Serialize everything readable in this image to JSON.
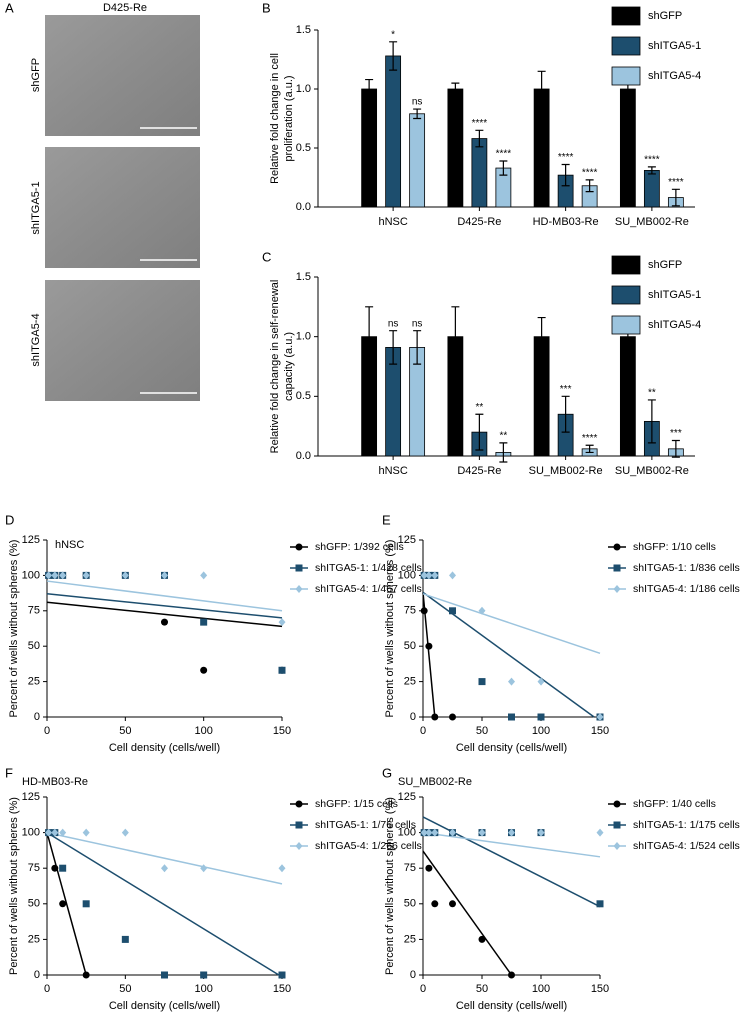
{
  "panel_a": {
    "letter": "A",
    "title": "D425-Re",
    "rows": [
      "shGFP",
      "shITGA5-1",
      "shITGA5-4"
    ]
  },
  "chart_data": [
    {
      "type": "bar",
      "letter": "B",
      "ylabel": [
        "Relative fold change in cell",
        "proliferation (a.u.)"
      ],
      "categories": [
        "hNSC",
        "D425-Re",
        "HD-MB03-Re",
        "SU_MB002-Re"
      ],
      "ylim": [
        0,
        1.5
      ],
      "yticks": [
        {
          "value": 0,
          "label": "0.0"
        },
        {
          "value": 0.5,
          "label": "0.5"
        },
        {
          "value": 1,
          "label": "1.0"
        },
        {
          "value": 1.5,
          "label": "1.5"
        }
      ],
      "series": [
        {
          "name": "shGFP",
          "color": "#000000",
          "values": [
            1.0,
            1.0,
            1.0,
            1.0
          ],
          "errors": [
            0.08,
            0.05,
            0.15,
            0.1
          ]
        },
        {
          "name": "shITGA5-1",
          "color": "#1d4e6e",
          "values": [
            1.28,
            0.58,
            0.27,
            0.31
          ],
          "errors": [
            0.12,
            0.07,
            0.09,
            0.03
          ],
          "annotations": [
            "*",
            "****",
            "****",
            "****"
          ]
        },
        {
          "name": "shITGA5-4",
          "color": "#9cc4de",
          "values": [
            0.79,
            0.33,
            0.18,
            0.08
          ],
          "errors": [
            0.04,
            0.06,
            0.05,
            0.07
          ],
          "annotations": [
            "ns",
            "****",
            "****",
            "****"
          ]
        }
      ]
    },
    {
      "type": "bar",
      "letter": "C",
      "ylabel": [
        "Relative fold change in self-renewal",
        "capacity (a.u.)"
      ],
      "categories": [
        "hNSC",
        "D425-Re",
        "SU_MB002-Re",
        "SU_MB002-Re"
      ],
      "ylim": [
        0,
        1.5
      ],
      "yticks": [
        {
          "value": 0,
          "label": "0.0"
        },
        {
          "value": 0.5,
          "label": "0.5"
        },
        {
          "value": 1,
          "label": "1.0"
        },
        {
          "value": 1.5,
          "label": "1.5"
        }
      ],
      "series": [
        {
          "name": "shGFP",
          "color": "#000000",
          "values": [
            1.0,
            1.0,
            1.0,
            1.0
          ],
          "errors": [
            0.25,
            0.25,
            0.16,
            0.11
          ]
        },
        {
          "name": "shITGA5-1",
          "color": "#1d4e6e",
          "values": [
            0.91,
            0.2,
            0.35,
            0.29
          ],
          "errors": [
            0.14,
            0.15,
            0.15,
            0.18
          ],
          "annotations": [
            "ns",
            "**",
            "***",
            "**"
          ]
        },
        {
          "name": "shITGA5-4",
          "color": "#9cc4de",
          "values": [
            0.91,
            0.03,
            0.06,
            0.06
          ],
          "errors": [
            0.14,
            0.08,
            0.03,
            0.07
          ],
          "annotations": [
            "ns",
            "**",
            "****",
            "***"
          ]
        }
      ]
    },
    {
      "type": "scatter",
      "letter": "D",
      "title": "hNSC",
      "xlabel": "Cell density (cells/well)",
      "ylabel": "Percent of wells without spheres (%)",
      "xlim": [
        0,
        150
      ],
      "xticks": [
        0,
        50,
        100,
        150
      ],
      "ylim": [
        0,
        125
      ],
      "yticks": [
        0,
        25,
        50,
        75,
        100,
        125
      ],
      "series": [
        {
          "name": "shGFP: 1/392 cells",
          "color": "#000000",
          "marker": "circle",
          "x": [
            1,
            5,
            10,
            25,
            50,
            75,
            100,
            150
          ],
          "y": [
            100,
            100,
            100,
            100,
            100,
            67,
            33,
            33
          ],
          "fit_x": [
            0,
            150
          ],
          "fit_y": [
            81,
            64
          ]
        },
        {
          "name": "shITGA5-1: 1/428 cells",
          "color": "#1d4e6e",
          "marker": "square",
          "x": [
            1,
            5,
            10,
            25,
            50,
            75,
            100,
            150
          ],
          "y": [
            100,
            100,
            100,
            100,
            100,
            100,
            67,
            33
          ],
          "fit_x": [
            0,
            150
          ],
          "fit_y": [
            87,
            70
          ]
        },
        {
          "name": "shITGA5-4: 1/467 cells",
          "color": "#9cc4de",
          "marker": "diamond",
          "x": [
            1,
            5,
            10,
            25,
            50,
            75,
            100,
            150
          ],
          "y": [
            100,
            100,
            100,
            100,
            100,
            100,
            100,
            67
          ],
          "fit_x": [
            0,
            150
          ],
          "fit_y": [
            96,
            75
          ]
        }
      ]
    },
    {
      "type": "scatter",
      "letter": "E",
      "xlabel": "Cell density (cells/well)",
      "ylabel": "Percent of wells without spheres (%)",
      "xlim": [
        0,
        150
      ],
      "xticks": [
        0,
        50,
        100,
        150
      ],
      "ylim": [
        0,
        125
      ],
      "yticks": [
        0,
        25,
        50,
        75,
        100,
        125
      ],
      "series": [
        {
          "name": "shGFP: 1/10 cells",
          "color": "#000000",
          "marker": "circle",
          "x": [
            1,
            5,
            10,
            25
          ],
          "y": [
            75,
            50,
            0,
            0
          ],
          "fit_x": [
            0,
            10
          ],
          "fit_y": [
            88,
            0
          ]
        },
        {
          "name": "shITGA5-1: 1/836 cells",
          "color": "#1d4e6e",
          "marker": "square",
          "x": [
            1,
            5,
            10,
            25,
            50,
            75,
            100,
            150
          ],
          "y": [
            100,
            100,
            100,
            75,
            25,
            0,
            0,
            0
          ],
          "fit_x": [
            0,
            145
          ],
          "fit_y": [
            88,
            0
          ]
        },
        {
          "name": "shITGA5-4: 1/186 cells",
          "color": "#9cc4de",
          "marker": "diamond",
          "x": [
            1,
            5,
            10,
            25,
            50,
            75,
            100,
            150
          ],
          "y": [
            100,
            100,
            100,
            100,
            75,
            25,
            25,
            0
          ],
          "fit_x": [
            0,
            150
          ],
          "fit_y": [
            87,
            45
          ]
        }
      ]
    },
    {
      "type": "scatter",
      "letter": "F",
      "title": "HD-MB03-Re",
      "xlabel": "Cell density (cells/well)",
      "ylabel": "Percent of wells without spheres (%)",
      "xlim": [
        0,
        150
      ],
      "xticks": [
        0,
        50,
        100,
        150
      ],
      "ylim": [
        0,
        125
      ],
      "yticks": [
        0,
        25,
        50,
        75,
        100,
        125
      ],
      "series": [
        {
          "name": "shGFP: 1/15 cells",
          "color": "#000000",
          "marker": "circle",
          "x": [
            1,
            5,
            10,
            25
          ],
          "y": [
            100,
            75,
            50,
            0
          ],
          "fit_x": [
            0,
            25
          ],
          "fit_y": [
            100,
            0
          ]
        },
        {
          "name": "shITGA5-1: 1/76 cells",
          "color": "#1d4e6e",
          "marker": "square",
          "x": [
            1,
            5,
            10,
            25,
            50,
            75,
            100,
            150
          ],
          "y": [
            100,
            100,
            75,
            50,
            25,
            0,
            0,
            0
          ],
          "fit_x": [
            0,
            148
          ],
          "fit_y": [
            100,
            0
          ]
        },
        {
          "name": "shITGA5-4: 1/266 cells",
          "color": "#9cc4de",
          "marker": "diamond",
          "x": [
            1,
            5,
            10,
            25,
            50,
            75,
            100,
            150
          ],
          "y": [
            100,
            100,
            100,
            100,
            100,
            75,
            75,
            75
          ],
          "fit_x": [
            0,
            150
          ],
          "fit_y": [
            100,
            64
          ]
        }
      ]
    },
    {
      "type": "scatter",
      "letter": "G",
      "title": "SU_MB002-Re",
      "xlabel": "Cell density (cells/well)",
      "ylabel": "Percent of wells without spheres (%)",
      "xlim": [
        0,
        150
      ],
      "xticks": [
        0,
        50,
        100,
        150
      ],
      "ylim": [
        0,
        125
      ],
      "yticks": [
        0,
        25,
        50,
        75,
        100,
        125
      ],
      "series": [
        {
          "name": "shGFP: 1/40 cells",
          "color": "#000000",
          "marker": "circle",
          "x": [
            1,
            5,
            10,
            25,
            50,
            75
          ],
          "y": [
            100,
            75,
            50,
            50,
            25,
            0
          ],
          "fit_x": [
            0,
            75
          ],
          "fit_y": [
            87,
            0
          ]
        },
        {
          "name": "shITGA5-1: 1/175 cells",
          "color": "#1d4e6e",
          "marker": "square",
          "x": [
            1,
            5,
            10,
            25,
            50,
            75,
            100,
            150
          ],
          "y": [
            100,
            100,
            100,
            100,
            100,
            100,
            100,
            50
          ],
          "fit_x": [
            0,
            150
          ],
          "fit_y": [
            111,
            48
          ]
        },
        {
          "name": "shITGA5-4: 1/524 cells",
          "color": "#9cc4de",
          "marker": "diamond",
          "x": [
            1,
            5,
            10,
            25,
            50,
            75,
            100,
            150
          ],
          "y": [
            100,
            100,
            100,
            100,
            100,
            100,
            100,
            100
          ],
          "fit_x": [
            0,
            150
          ],
          "fit_y": [
            100,
            83
          ]
        }
      ]
    }
  ]
}
